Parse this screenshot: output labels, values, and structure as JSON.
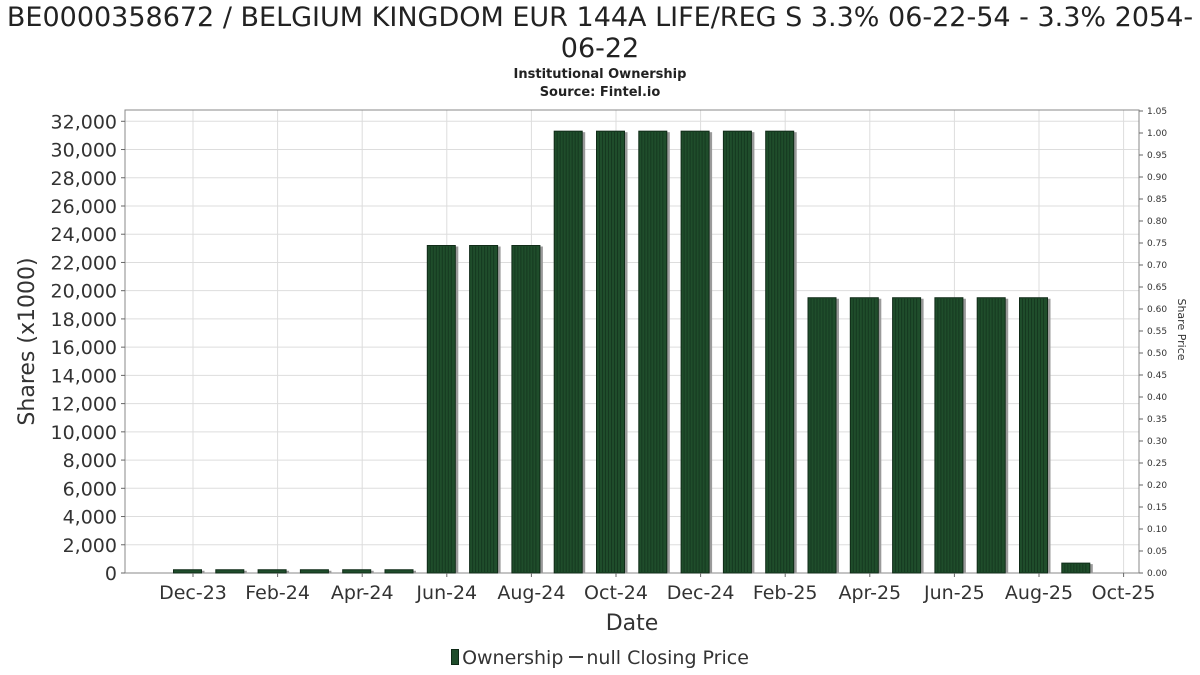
{
  "title": "BE0000358672 / BELGIUM KINGDOM EUR 144A LIFE/REG S 3.3% 06-22-54 - 3.3% 2054-06-22",
  "subtitle": "Institutional Ownership",
  "source": "Source: Fintel.io",
  "legend": {
    "ownership": "Ownership",
    "price": "null Closing Price"
  },
  "colors": {
    "bar": "#1f4d2b",
    "bar_dark": "#0f2a17",
    "shadow": "#9a9a9a",
    "grid": "#dddddd"
  },
  "chart_data": {
    "type": "bar",
    "title": "BE0000358672 / BELGIUM KINGDOM EUR 144A LIFE/REG S 3.3% 06-22-54 - 3.3% 2054-06-22",
    "xlabel": "Date",
    "ylabel": "Shares (x1000)",
    "y2label": "Share Price",
    "ylim": [
      0,
      32800
    ],
    "y2lim": [
      0,
      1.05
    ],
    "yticks": [
      0,
      2000,
      4000,
      6000,
      8000,
      10000,
      12000,
      14000,
      16000,
      18000,
      20000,
      22000,
      24000,
      26000,
      28000,
      30000,
      32000
    ],
    "y2ticks": [
      "0.00",
      "0.05",
      "0.10",
      "0.15",
      "0.20",
      "0.25",
      "0.30",
      "0.35",
      "0.40",
      "0.45",
      "0.50",
      "0.55",
      "0.60",
      "0.65",
      "0.70",
      "0.75",
      "0.80",
      "0.85",
      "0.90",
      "0.95",
      "1.00",
      "1.05"
    ],
    "xtick_labels": [
      "Dec-23",
      "Feb-24",
      "Apr-24",
      "Jun-24",
      "Aug-24",
      "Oct-24",
      "Dec-24",
      "Feb-25",
      "Apr-25",
      "Jun-25",
      "Aug-25",
      "Oct-25"
    ],
    "grid": true,
    "legend_position": "bottom",
    "series": [
      {
        "name": "Ownership",
        "values": [
          230,
          230,
          230,
          230,
          230,
          230,
          23200,
          23200,
          23200,
          31300,
          31300,
          31300,
          31300,
          31300,
          31300,
          19500,
          19500,
          19500,
          19500,
          19500,
          19500,
          700
        ]
      }
    ]
  }
}
